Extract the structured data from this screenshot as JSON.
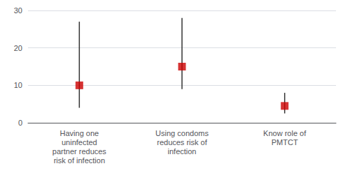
{
  "chart_data": {
    "type": "scatter",
    "categories": [
      "Having one\nuninfected\npartner reduces\nrisk of infection",
      "Using condoms\nreduces risk of\ninfection",
      "Know role of\nPMTCT"
    ],
    "values": [
      10,
      15,
      4.5
    ],
    "lower_errors": [
      6,
      6,
      2.0
    ],
    "upper_errors": [
      17,
      13,
      3.5
    ],
    "color": "#CC0000",
    "marker": "square",
    "ylim": [
      0,
      30
    ],
    "yticks": [
      0,
      10,
      20,
      30
    ],
    "grid": true
  }
}
